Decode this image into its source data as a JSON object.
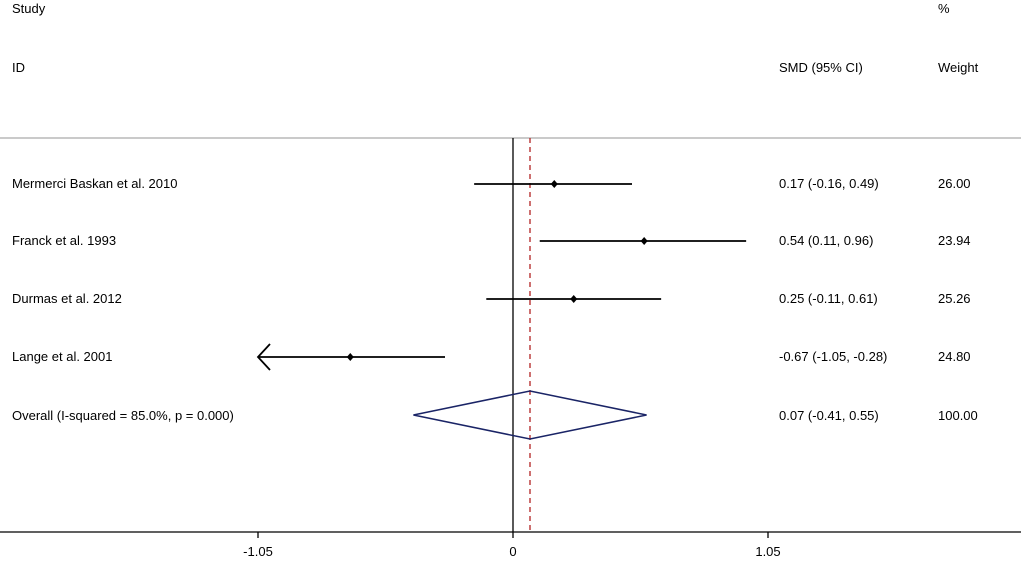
{
  "chart_data": {
    "type": "forest",
    "headers": {
      "study_line1": "Study",
      "study_line2": "ID",
      "effect": "SMD (95% CI)",
      "weight_line1": "%",
      "weight_line2": "Weight"
    },
    "studies": [
      {
        "label": "Mermerci Baskan et al. 2010",
        "estimate": 0.17,
        "lower": -0.16,
        "upper": 0.49,
        "ci_text": "0.17 (-0.16, 0.49)",
        "weight": "26.00"
      },
      {
        "label": "Franck et al. 1993",
        "estimate": 0.54,
        "lower": 0.11,
        "upper": 0.96,
        "ci_text": "0.54 (0.11, 0.96)",
        "weight": "23.94"
      },
      {
        "label": "Durmas et al. 2012",
        "estimate": 0.25,
        "lower": -0.11,
        "upper": 0.61,
        "ci_text": "0.25 (-0.11, 0.61)",
        "weight": "25.26"
      },
      {
        "label": "Lange et al. 2001",
        "estimate": -0.67,
        "lower": -1.05,
        "upper": -0.28,
        "ci_text": "-0.67 (-1.05, -0.28)",
        "weight": "24.80",
        "lower_truncated": true
      }
    ],
    "overall": {
      "label": "Overall  (I-squared = 85.0%, p = 0.000)",
      "estimate": 0.07,
      "lower": -0.41,
      "upper": 0.55,
      "ci_text": "0.07 (-0.41, 0.55)",
      "weight": "100.00"
    },
    "x_axis": {
      "ticks": [
        -1.05,
        0,
        1.05
      ],
      "tick_labels": [
        "-1.05",
        "0",
        "1.05"
      ],
      "range": [
        -2.1,
        2.1
      ]
    },
    "null_line": 0,
    "reference_line": 0.07,
    "colors": {
      "ci_line": "#000000",
      "diamond": "#1a2466",
      "reference_line": "#b22222",
      "separator": "#aaaaaa"
    }
  }
}
